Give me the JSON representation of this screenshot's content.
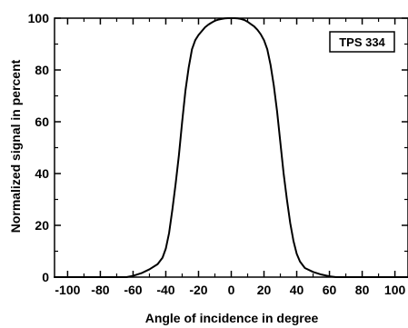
{
  "chart_data": {
    "type": "line",
    "title": "",
    "xlabel": "Angle of incidence in degree",
    "ylabel": "Normalized signal in percent",
    "xlim": [
      -108,
      108
    ],
    "ylim": [
      0,
      100
    ],
    "xticks": [
      -100,
      -80,
      -60,
      -40,
      -20,
      0,
      20,
      40,
      60,
      80,
      100
    ],
    "yticks": [
      0,
      20,
      40,
      60,
      80,
      100
    ],
    "grid": false,
    "annotation": "TPS 334",
    "series": [
      {
        "color": "#000000",
        "x": [
          -108,
          -70,
          -64,
          -60,
          -55,
          -50,
          -45,
          -42,
          -40,
          -38,
          -36,
          -34,
          -32,
          -30,
          -28,
          -26,
          -24,
          -22,
          -20,
          -18,
          -16,
          -14,
          -12,
          -10,
          -8,
          -6,
          -4,
          -2,
          0,
          2,
          4,
          6,
          8,
          10,
          12,
          14,
          16,
          18,
          20,
          22,
          24,
          26,
          28,
          30,
          32,
          34,
          36,
          38,
          40,
          42,
          45,
          50,
          55,
          60,
          64,
          70,
          108
        ],
        "y": [
          0,
          0,
          0,
          0.5,
          1.5,
          3,
          5,
          7.5,
          11,
          17,
          26,
          36,
          47,
          60,
          72,
          81,
          88,
          91.5,
          93.5,
          95,
          96.5,
          97.5,
          98.3,
          99,
          99.4,
          99.7,
          99.9,
          100,
          100,
          100,
          99.9,
          99.7,
          99.3,
          98.6,
          97.7,
          96.8,
          95.5,
          93.8,
          91.5,
          88,
          82,
          74,
          64,
          52,
          40,
          30,
          21,
          14,
          9,
          6,
          3.5,
          2,
          1,
          0.3,
          0,
          0,
          0
        ]
      }
    ]
  }
}
